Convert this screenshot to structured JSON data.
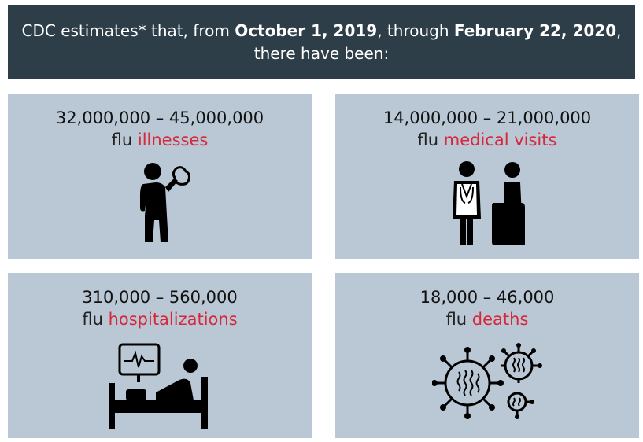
{
  "header": {
    "part1": "CDC estimates* that, from ",
    "date_start": "October 1, 2019",
    "part2": ", through ",
    "date_end": "February 22, 2020",
    "part3": ", there have been:"
  },
  "cards": [
    {
      "range": "32,000,000 – 45,000,000",
      "prefix": "flu ",
      "highlight": "illnesses",
      "icon": "sick-person-icon"
    },
    {
      "range": "14,000,000 – 21,000,000",
      "prefix": "flu ",
      "highlight": "medical visits",
      "icon": "doctor-patient-icon"
    },
    {
      "range": "310,000 – 560,000",
      "prefix": "flu ",
      "highlight": "hospitalizations",
      "icon": "hospital-bed-icon"
    },
    {
      "range": "18,000 – 46,000",
      "prefix": "flu ",
      "highlight": "deaths",
      "icon": "virus-icon"
    }
  ],
  "colors": {
    "header_bg": "#2e3e48",
    "card_bg": "#b9c8d4",
    "highlight": "#d8263a"
  }
}
